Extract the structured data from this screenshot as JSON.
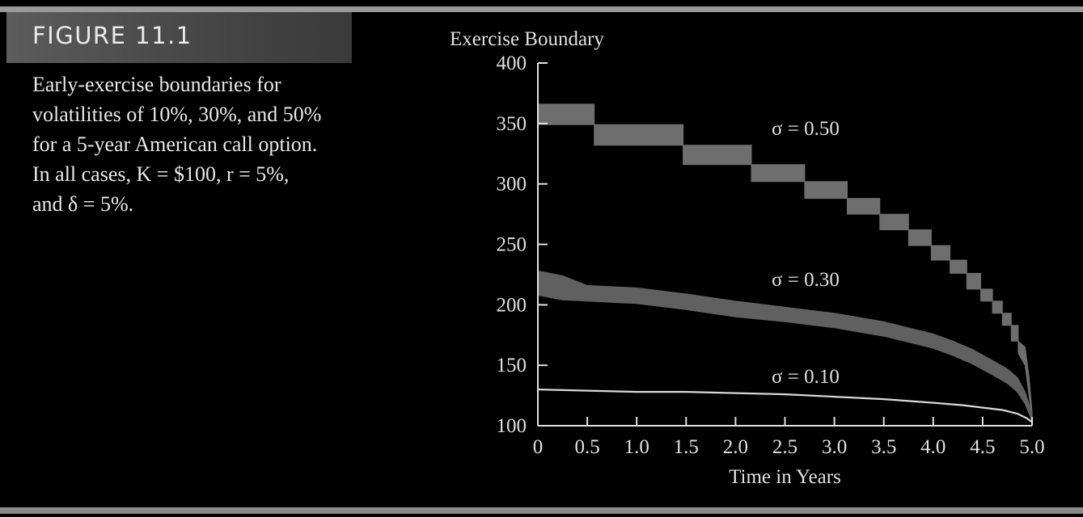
{
  "figure": {
    "label": "FIGURE 11.1",
    "caption": "Early-exercise boundaries for volatilities of 10%, 30%, and 50% for a 5-year American call option. In all cases, K = $100, r = 5%, and δ = 5%."
  },
  "chart_data": {
    "type": "line",
    "ylabel": "Exercise Boundary",
    "xlabel": "Time in Years",
    "xlim": [
      0,
      5
    ],
    "ylim": [
      100,
      400
    ],
    "x_ticks": [
      "0",
      "0.5",
      "1.0",
      "1.5",
      "2.0",
      "2.5",
      "3.0",
      "3.5",
      "4.0",
      "4.5",
      "5.0"
    ],
    "y_ticks": [
      "100",
      "150",
      "200",
      "250",
      "300",
      "350",
      "400"
    ],
    "series": [
      {
        "name": "σ = 0.50",
        "color": "#6e6e6e",
        "style": "band",
        "x": [
          0,
          0.57,
          0.57,
          1.47,
          1.47,
          2.16,
          2.16,
          2.7,
          2.7,
          3.13,
          3.13,
          3.46,
          3.46,
          3.75,
          3.75,
          3.98,
          3.98,
          4.17,
          4.17,
          4.34,
          4.34,
          4.48,
          4.48,
          4.6,
          4.6,
          4.7,
          4.7,
          4.79,
          4.79,
          4.86,
          4.86,
          4.93,
          4.97,
          5.0
        ],
        "high": [
          366,
          366,
          349,
          349,
          332,
          332,
          316,
          316,
          302,
          302,
          288,
          288,
          275,
          275,
          262,
          262,
          249,
          249,
          237,
          237,
          226,
          226,
          213,
          213,
          203,
          203,
          193,
          193,
          183,
          183,
          170,
          165,
          140,
          112
        ],
        "low": [
          349,
          349,
          332,
          332,
          316,
          316,
          302,
          302,
          288,
          288,
          275,
          275,
          262,
          262,
          249,
          249,
          237,
          237,
          226,
          226,
          213,
          213,
          203,
          203,
          193,
          193,
          183,
          183,
          170,
          170,
          160,
          150,
          125,
          105
        ]
      },
      {
        "name": "σ = 0.30",
        "color": "#606060",
        "style": "band",
        "x": [
          0,
          0.25,
          0.5,
          1.0,
          1.5,
          2.0,
          2.5,
          3.0,
          3.5,
          3.8,
          4.0,
          4.2,
          4.4,
          4.6,
          4.75,
          4.85,
          4.93,
          5.0
        ],
        "high": [
          228,
          224,
          216,
          214,
          209,
          203,
          198,
          193,
          186,
          180,
          176,
          170,
          163,
          154,
          147,
          140,
          128,
          110
        ],
        "low": [
          208,
          204,
          203,
          201,
          196,
          190,
          186,
          181,
          174,
          168,
          164,
          158,
          151,
          142,
          135,
          128,
          118,
          104
        ]
      },
      {
        "name": "σ = 0.10",
        "color": "#d8d8d8",
        "style": "line",
        "x": [
          0,
          0.5,
          1.0,
          1.5,
          2.0,
          2.5,
          3.0,
          3.5,
          4.0,
          4.3,
          4.5,
          4.7,
          4.85,
          4.95,
          5.0
        ],
        "y": [
          130,
          129,
          128,
          128,
          127,
          126,
          124,
          122,
          119,
          117,
          115,
          113,
          110,
          106,
          103
        ]
      }
    ]
  }
}
